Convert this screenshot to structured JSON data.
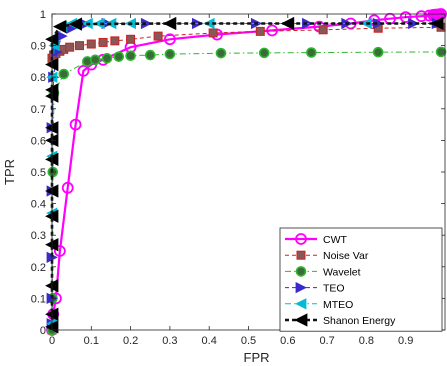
{
  "chart_data": {
    "type": "line",
    "title": "",
    "xlabel": "FPR",
    "ylabel": "TPR",
    "xlim": [
      0,
      1
    ],
    "ylim": [
      0,
      1
    ],
    "grid": false,
    "legend_position": "bottom-right",
    "x_ticks": [
      "0",
      "0.1",
      "0.2",
      "0.3",
      "0.4",
      "0.5",
      "0.6",
      "0.7",
      "0.8",
      "0.9"
    ],
    "y_ticks": [
      "0",
      "0.1",
      "0.2",
      "0.3",
      "0.4",
      "0.5",
      "0.6",
      "0.7",
      "0.8",
      "0.9",
      "1"
    ],
    "series": [
      {
        "name": "CWT",
        "color": "#ff00ff",
        "line": "solid",
        "marker": "circle-open",
        "points": [
          [
            0,
            0
          ],
          [
            0.003,
            0.05
          ],
          [
            0.01,
            0.1
          ],
          [
            0.02,
            0.25
          ],
          [
            0.04,
            0.45
          ],
          [
            0.06,
            0.65
          ],
          [
            0.08,
            0.82
          ],
          [
            0.1,
            0.84
          ],
          [
            0.13,
            0.855
          ],
          [
            0.2,
            0.895
          ],
          [
            0.3,
            0.92
          ],
          [
            0.42,
            0.935
          ],
          [
            0.56,
            0.948
          ],
          [
            0.68,
            0.96
          ],
          [
            0.76,
            0.97
          ],
          [
            0.82,
            0.98
          ],
          [
            0.86,
            0.985
          ],
          [
            0.9,
            0.99
          ],
          [
            0.94,
            0.993
          ],
          [
            0.96,
            0.995
          ],
          [
            0.97,
            0.997
          ],
          [
            0.975,
            0.998
          ],
          [
            0.98,
            0.998
          ],
          [
            0.985,
            0.999
          ],
          [
            0.99,
            1.0
          ]
        ]
      },
      {
        "name": "Noise Var",
        "color": "#cc2222",
        "line": "dashed",
        "marker": "square",
        "points": [
          [
            0,
            0
          ],
          [
            0,
            0.86
          ],
          [
            0.004,
            0.87
          ],
          [
            0.01,
            0.875
          ],
          [
            0.02,
            0.882
          ],
          [
            0.03,
            0.888
          ],
          [
            0.045,
            0.895
          ],
          [
            0.07,
            0.9
          ],
          [
            0.1,
            0.905
          ],
          [
            0.13,
            0.91
          ],
          [
            0.16,
            0.915
          ],
          [
            0.2,
            0.92
          ],
          [
            0.27,
            0.93
          ],
          [
            0.41,
            0.94
          ],
          [
            0.53,
            0.945
          ],
          [
            0.69,
            0.95
          ],
          [
            0.83,
            0.955
          ],
          [
            0.99,
            0.958
          ]
        ]
      },
      {
        "name": "Wavelet",
        "color": "#2db82d",
        "line": "dashdot",
        "marker": "circle-filled",
        "points": [
          [
            0,
            0
          ],
          [
            0.001,
            0.1
          ],
          [
            0.002,
            0.5
          ],
          [
            0.005,
            0.75
          ],
          [
            0.03,
            0.81
          ],
          [
            0.09,
            0.85
          ],
          [
            0.11,
            0.855
          ],
          [
            0.14,
            0.86
          ],
          [
            0.17,
            0.865
          ],
          [
            0.2,
            0.868
          ],
          [
            0.25,
            0.87
          ],
          [
            0.3,
            0.873
          ],
          [
            0.43,
            0.876
          ],
          [
            0.54,
            0.877
          ],
          [
            0.66,
            0.878
          ],
          [
            0.83,
            0.879
          ],
          [
            0.99,
            0.88
          ]
        ]
      },
      {
        "name": "TEO",
        "color": "#3a2acb",
        "line": "dashed",
        "marker": "triangle-right",
        "points": [
          [
            0,
            0.02
          ],
          [
            0,
            0.1
          ],
          [
            0,
            0.23
          ],
          [
            0,
            0.44
          ],
          [
            0,
            0.64
          ],
          [
            0.004,
            0.8
          ],
          [
            0.012,
            0.88
          ],
          [
            0.025,
            0.93
          ],
          [
            0.05,
            0.955
          ],
          [
            0.085,
            0.968
          ],
          [
            0.14,
            0.97
          ],
          [
            0.24,
            0.97
          ],
          [
            0.37,
            0.97
          ],
          [
            0.52,
            0.97
          ],
          [
            0.65,
            0.97
          ],
          [
            0.75,
            0.97
          ],
          [
            0.83,
            0.97
          ],
          [
            0.92,
            0.97
          ],
          [
            0.98,
            0.97
          ]
        ]
      },
      {
        "name": "MTEO",
        "color": "#00bcd4",
        "line": "dashdot",
        "marker": "triangle-left",
        "points": [
          [
            0,
            0.02
          ],
          [
            0,
            0.14
          ],
          [
            0,
            0.37
          ],
          [
            0,
            0.55
          ],
          [
            0,
            0.8
          ],
          [
            0.006,
            0.9
          ],
          [
            0.025,
            0.96
          ],
          [
            0.05,
            0.97
          ],
          [
            0.09,
            0.97
          ],
          [
            0.12,
            0.97
          ],
          [
            0.15,
            0.97
          ],
          [
            0.2,
            0.97
          ],
          [
            0.3,
            0.97
          ],
          [
            0.4,
            0.97
          ],
          [
            0.6,
            0.97
          ],
          [
            0.8,
            0.97
          ]
        ]
      },
      {
        "name": "Shanon Energy",
        "color": "#111111",
        "line": "dashed",
        "marker": "triangle-left",
        "points": [
          [
            0,
            0.01
          ],
          [
            0,
            0.05
          ],
          [
            0,
            0.14
          ],
          [
            0,
            0.27
          ],
          [
            0,
            0.36
          ],
          [
            0,
            0.44
          ],
          [
            0,
            0.54
          ],
          [
            0,
            0.6
          ],
          [
            0,
            0.64
          ],
          [
            0,
            0.74
          ],
          [
            0,
            0.76
          ],
          [
            0,
            0.84
          ],
          [
            0,
            0.92
          ],
          [
            0.02,
            0.96
          ],
          [
            0.06,
            0.968
          ],
          [
            0.3,
            0.97
          ],
          [
            0.6,
            0.97
          ],
          [
            0.98,
            0.97
          ]
        ]
      }
    ]
  }
}
